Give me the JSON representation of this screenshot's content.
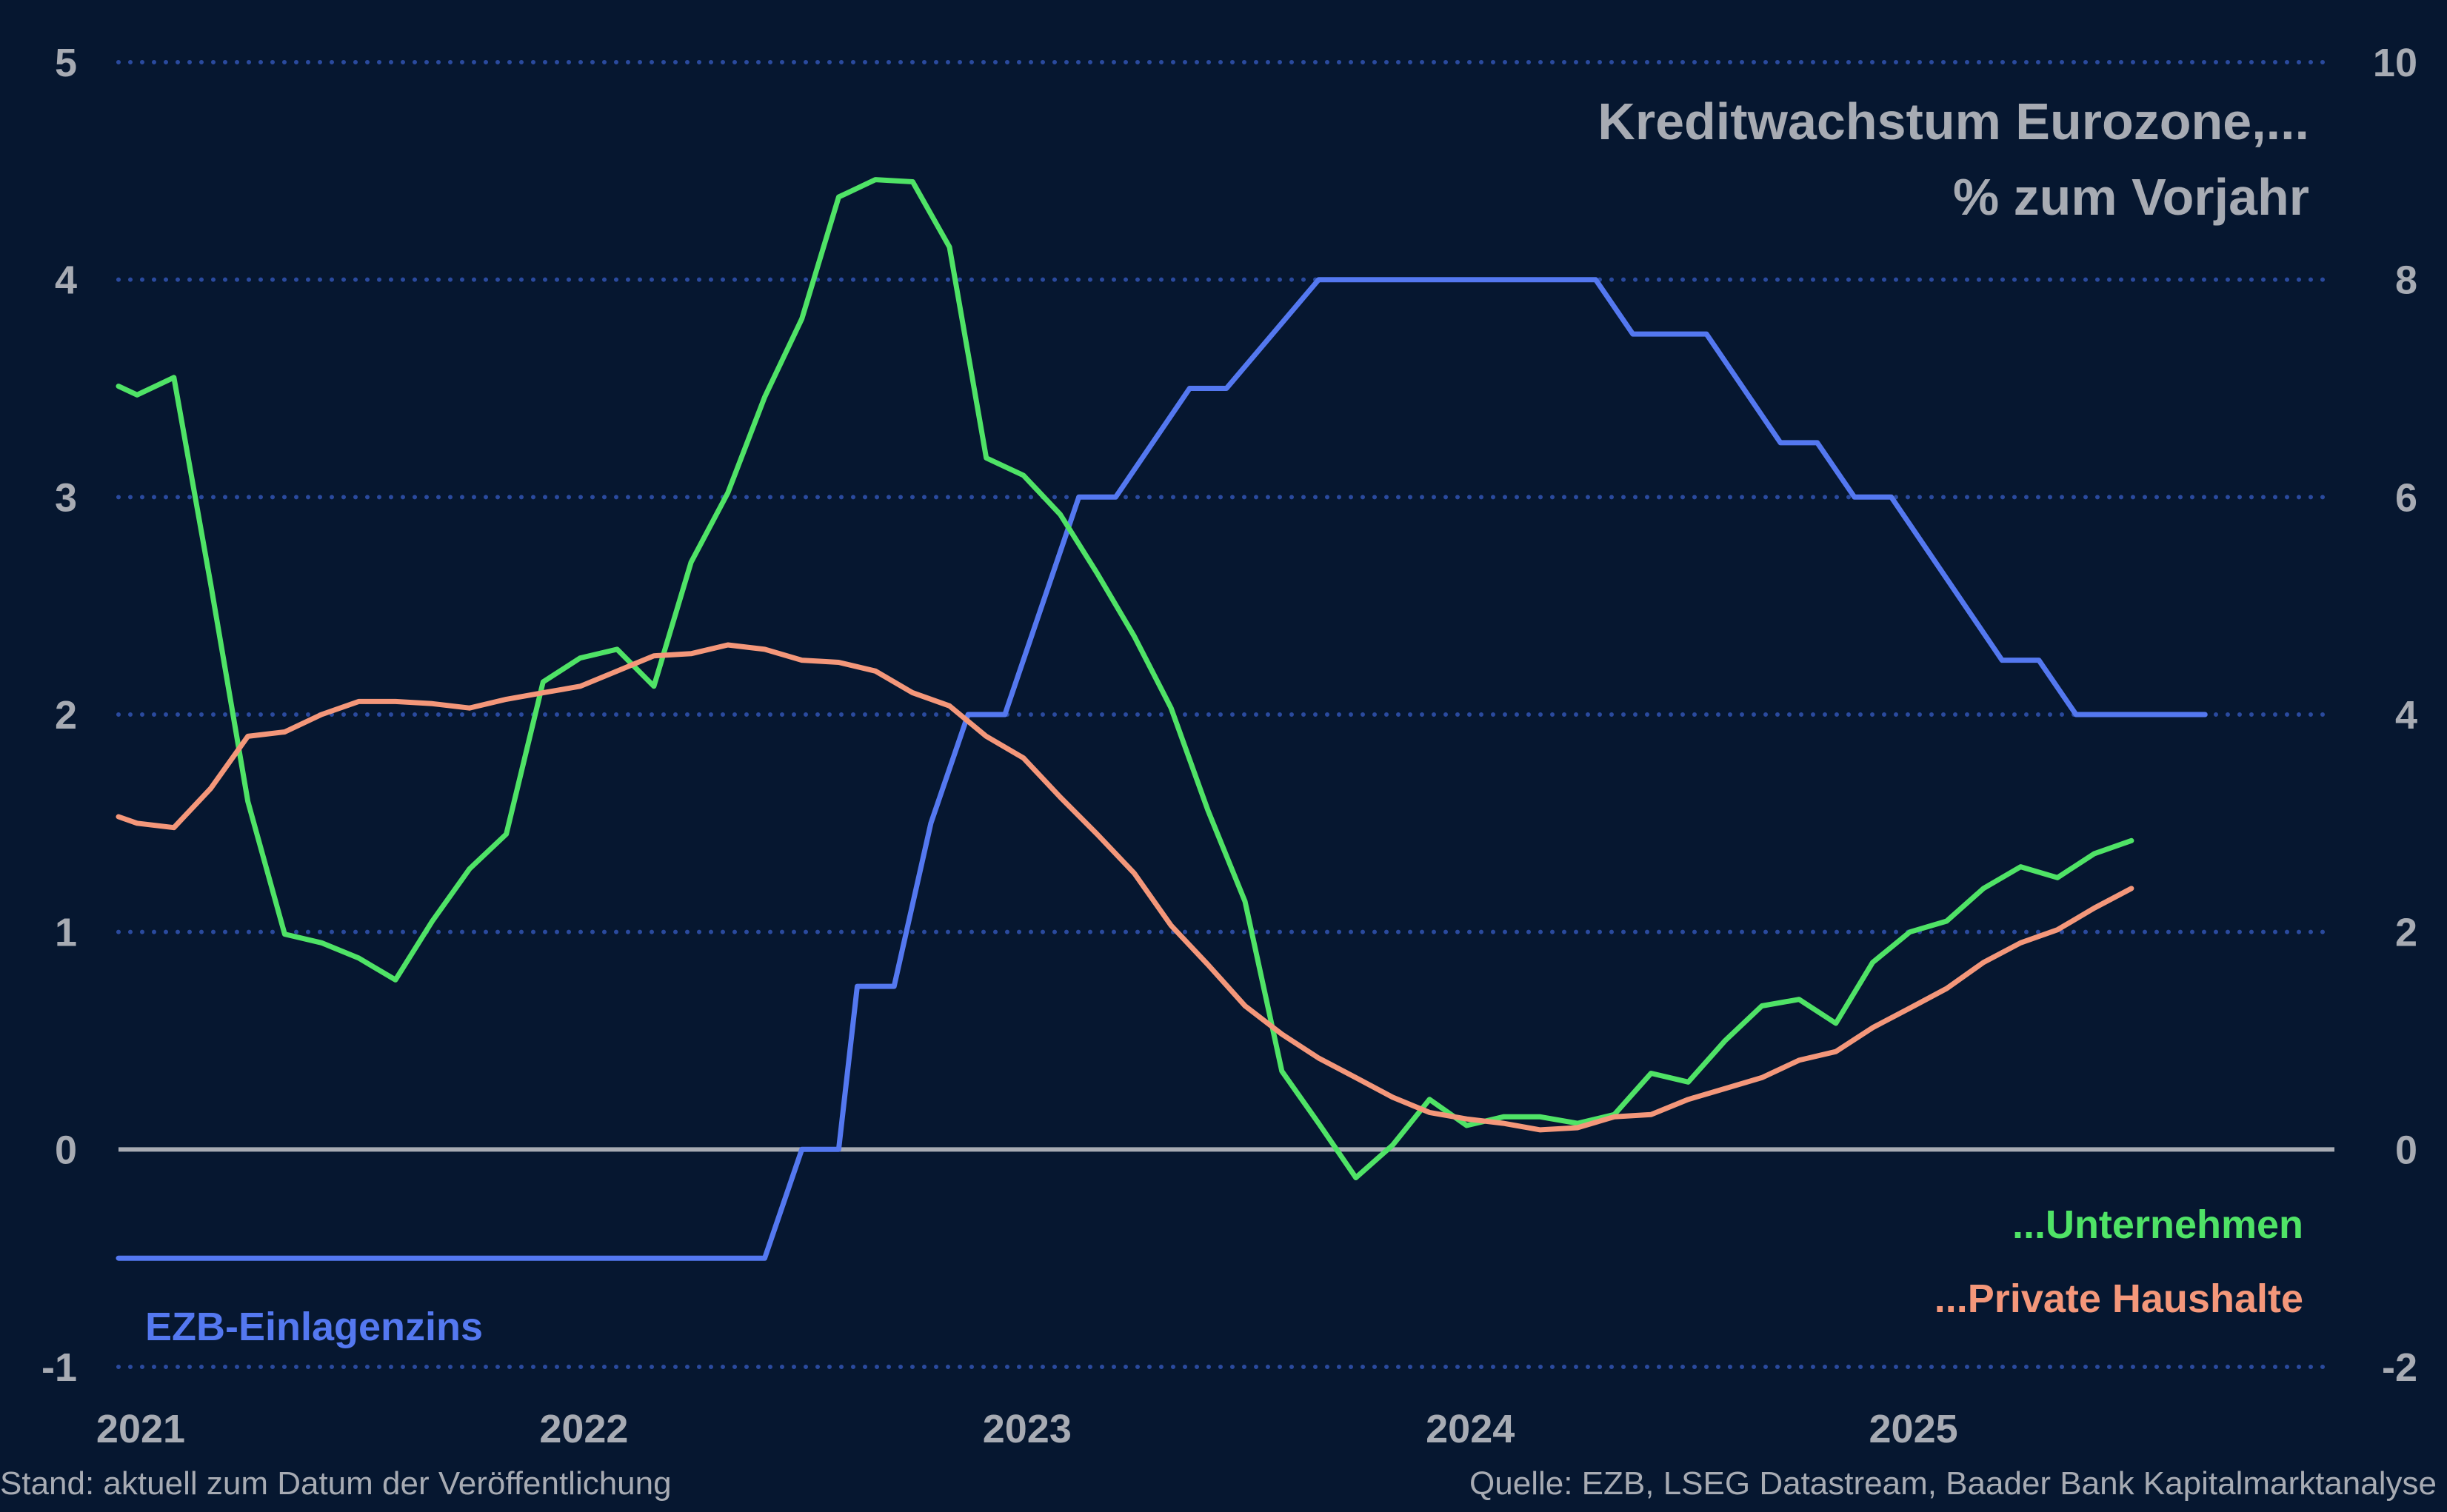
{
  "chart_data": {
    "type": "line",
    "title": [
      "Kreditwachstum Eurozone,...",
      "% zum Vorjahr"
    ],
    "x_ticks": [
      "2021",
      "2022",
      "2023",
      "2024",
      "2025"
    ],
    "y_left": {
      "ticks": [
        "5",
        "4",
        "3",
        "2",
        "1",
        "0",
        "-1"
      ],
      "lim": [
        -1,
        5
      ]
    },
    "y_right": {
      "ticks": [
        "10",
        "8",
        "6",
        "4",
        "2",
        "0",
        "-2"
      ],
      "lim": [
        -2,
        10
      ]
    },
    "x_range": [
      2021.0,
      2026.0
    ],
    "grid": true,
    "zero_line": true,
    "series": [
      {
        "name": "EZB-Einlagenzins",
        "axis": "right",
        "color": "#5478f0",
        "points": [
          [
            2021.0,
            -1.0
          ],
          [
            2022.458,
            -1.0
          ],
          [
            2022.542,
            0.0
          ],
          [
            2022.625,
            0.0
          ],
          [
            2022.667,
            1.5
          ],
          [
            2022.75,
            1.5
          ],
          [
            2022.833,
            3.0
          ],
          [
            2022.917,
            4.0
          ],
          [
            2023.0,
            4.0
          ],
          [
            2023.167,
            6.0
          ],
          [
            2023.25,
            6.0
          ],
          [
            2023.417,
            7.0
          ],
          [
            2023.5,
            7.0
          ],
          [
            2023.708,
            8.0
          ],
          [
            2024.333,
            8.0
          ],
          [
            2024.417,
            7.5
          ],
          [
            2024.583,
            7.5
          ],
          [
            2024.75,
            6.5
          ],
          [
            2024.833,
            6.5
          ],
          [
            2024.917,
            6.0
          ],
          [
            2025.0,
            6.0
          ],
          [
            2025.25,
            4.5
          ],
          [
            2025.333,
            4.5
          ],
          [
            2025.417,
            4.0
          ],
          [
            2025.708,
            4.0
          ]
        ]
      },
      {
        "name": "...Unternehmen",
        "axis": "left",
        "color": "#4fe366",
        "points": [
          [
            2021.0,
            3.51
          ],
          [
            2021.042,
            3.47
          ],
          [
            2021.125,
            3.55
          ],
          [
            2021.208,
            2.6
          ],
          [
            2021.292,
            1.6
          ],
          [
            2021.375,
            0.99
          ],
          [
            2021.458,
            0.95
          ],
          [
            2021.542,
            0.88
          ],
          [
            2021.625,
            0.78
          ],
          [
            2021.708,
            1.05
          ],
          [
            2021.792,
            1.29
          ],
          [
            2021.875,
            1.45
          ],
          [
            2021.958,
            2.15
          ],
          [
            2022.042,
            2.26
          ],
          [
            2022.125,
            2.3
          ],
          [
            2022.208,
            2.13
          ],
          [
            2022.292,
            2.7
          ],
          [
            2022.375,
            3.02
          ],
          [
            2022.458,
            3.46
          ],
          [
            2022.542,
            3.82
          ],
          [
            2022.625,
            4.38
          ],
          [
            2022.708,
            4.46
          ],
          [
            2022.792,
            4.45
          ],
          [
            2022.875,
            4.15
          ],
          [
            2022.958,
            3.18
          ],
          [
            2023.042,
            3.1
          ],
          [
            2023.125,
            2.92
          ],
          [
            2023.208,
            2.65
          ],
          [
            2023.292,
            2.36
          ],
          [
            2023.375,
            2.03
          ],
          [
            2023.458,
            1.56
          ],
          [
            2023.542,
            1.14
          ],
          [
            2023.625,
            0.36
          ],
          [
            2023.708,
            0.12
          ],
          [
            2023.792,
            -0.13
          ],
          [
            2023.875,
            0.02
          ],
          [
            2023.958,
            0.23
          ],
          [
            2024.042,
            0.11
          ],
          [
            2024.125,
            0.15
          ],
          [
            2024.208,
            0.15
          ],
          [
            2024.292,
            0.12
          ],
          [
            2024.375,
            0.16
          ],
          [
            2024.458,
            0.35
          ],
          [
            2024.542,
            0.31
          ],
          [
            2024.625,
            0.5
          ],
          [
            2024.708,
            0.66
          ],
          [
            2024.792,
            0.69
          ],
          [
            2024.875,
            0.58
          ],
          [
            2024.958,
            0.86
          ],
          [
            2025.042,
            1.0
          ],
          [
            2025.125,
            1.05
          ],
          [
            2025.208,
            1.2
          ],
          [
            2025.292,
            1.3
          ],
          [
            2025.375,
            1.25
          ],
          [
            2025.458,
            1.36
          ],
          [
            2025.542,
            1.42
          ]
        ]
      },
      {
        "name": "...Private Haushalte",
        "axis": "left",
        "color": "#f4977a",
        "points": [
          [
            2021.0,
            1.53
          ],
          [
            2021.042,
            1.5
          ],
          [
            2021.125,
            1.48
          ],
          [
            2021.208,
            1.66
          ],
          [
            2021.292,
            1.9
          ],
          [
            2021.375,
            1.92
          ],
          [
            2021.458,
            2.0
          ],
          [
            2021.542,
            2.06
          ],
          [
            2021.625,
            2.06
          ],
          [
            2021.708,
            2.05
          ],
          [
            2021.792,
            2.03
          ],
          [
            2021.875,
            2.07
          ],
          [
            2021.958,
            2.1
          ],
          [
            2022.042,
            2.13
          ],
          [
            2022.125,
            2.2
          ],
          [
            2022.208,
            2.27
          ],
          [
            2022.292,
            2.28
          ],
          [
            2022.375,
            2.32
          ],
          [
            2022.458,
            2.3
          ],
          [
            2022.542,
            2.25
          ],
          [
            2022.625,
            2.24
          ],
          [
            2022.708,
            2.2
          ],
          [
            2022.792,
            2.1
          ],
          [
            2022.875,
            2.04
          ],
          [
            2022.958,
            1.9
          ],
          [
            2023.042,
            1.8
          ],
          [
            2023.125,
            1.62
          ],
          [
            2023.208,
            1.45
          ],
          [
            2023.292,
            1.27
          ],
          [
            2023.375,
            1.03
          ],
          [
            2023.458,
            0.85
          ],
          [
            2023.542,
            0.66
          ],
          [
            2023.625,
            0.53
          ],
          [
            2023.708,
            0.42
          ],
          [
            2023.792,
            0.33
          ],
          [
            2023.875,
            0.24
          ],
          [
            2023.958,
            0.17
          ],
          [
            2024.042,
            0.14
          ],
          [
            2024.125,
            0.12
          ],
          [
            2024.208,
            0.09
          ],
          [
            2024.292,
            0.1
          ],
          [
            2024.375,
            0.15
          ],
          [
            2024.458,
            0.16
          ],
          [
            2024.542,
            0.23
          ],
          [
            2024.625,
            0.28
          ],
          [
            2024.708,
            0.33
          ],
          [
            2024.792,
            0.41
          ],
          [
            2024.875,
            0.45
          ],
          [
            2024.958,
            0.56
          ],
          [
            2025.042,
            0.65
          ],
          [
            2025.125,
            0.74
          ],
          [
            2025.208,
            0.86
          ],
          [
            2025.292,
            0.95
          ],
          [
            2025.375,
            1.01
          ],
          [
            2025.458,
            1.11
          ],
          [
            2025.542,
            1.2
          ]
        ]
      }
    ]
  },
  "legend": {
    "unternehmen": "...Unternehmen",
    "haushalte": "...Private Haushalte",
    "einlagenzins": "EZB-Einlagenzins"
  },
  "footer": {
    "left": "Stand: aktuell zum Datum der Veröffentlichung",
    "right": "Quelle: EZB, LSEG Datastream, Baader Bank Kapitalmarktanalyse"
  },
  "colors": {
    "background": "#061730",
    "grid": "#2a4a9e",
    "zero_line": "#a7abb3",
    "text": "#a7abb3"
  }
}
